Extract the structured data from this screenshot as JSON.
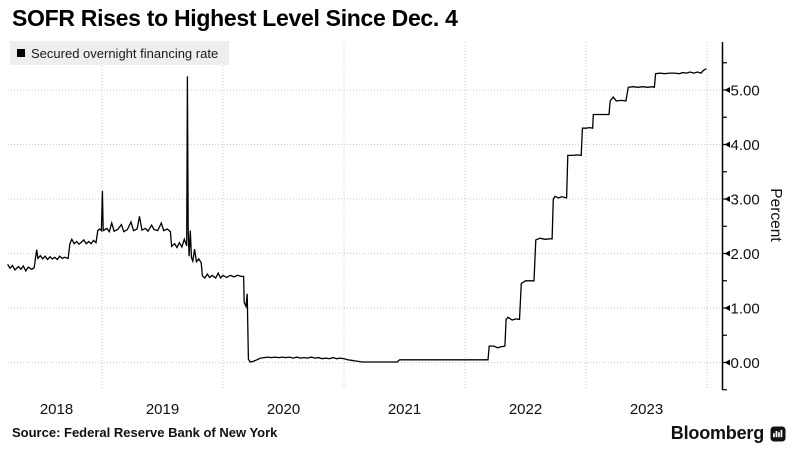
{
  "title": "SOFR Rises to Highest Level Since Dec. 4",
  "legend": {
    "label": "Secured overnight financing rate",
    "swatch_color": "#000000"
  },
  "source": "Source: Federal Reserve Bank of New York",
  "branding": {
    "name": "Bloomberg",
    "icon": "bloomberg-bars-badge"
  },
  "chart_data": {
    "type": "line",
    "title": "SOFR Rises to Highest Level Since Dec. 4",
    "ylabel": "Percent",
    "xlabel": "",
    "x_unit": "decimal_year",
    "xlim": [
      2018.22,
      2024.0
    ],
    "ylim": [
      -0.5,
      5.5
    ],
    "grid": "dotted",
    "legend_position": "top-left",
    "axis_side": "right",
    "line_color": "#000000",
    "grid_color": "#c8c8c8",
    "background": "#ffffff",
    "y_ticks_major": [
      0,
      1,
      2,
      3,
      4,
      5
    ],
    "y_tick_labels": [
      "0.00",
      "1.00",
      "2.00",
      "3.00",
      "4.00",
      "5.00"
    ],
    "y_minor_step": 0.5,
    "x_gridline_years": [
      2019,
      2020,
      2021,
      2022,
      2023,
      2024
    ],
    "x_tick_labels": [
      "2018",
      "2019",
      "2020",
      "2021",
      "2022",
      "2023"
    ],
    "series": [
      {
        "name": "Secured overnight financing rate",
        "color": "#000000",
        "points": [
          [
            2018.22,
            1.8
          ],
          [
            2018.24,
            1.73
          ],
          [
            2018.26,
            1.78
          ],
          [
            2018.28,
            1.7
          ],
          [
            2018.31,
            1.76
          ],
          [
            2018.33,
            1.71
          ],
          [
            2018.35,
            1.77
          ],
          [
            2018.37,
            1.68
          ],
          [
            2018.39,
            1.75
          ],
          [
            2018.42,
            1.71
          ],
          [
            2018.44,
            1.74
          ],
          [
            2018.45,
            1.92
          ],
          [
            2018.46,
            2.07
          ],
          [
            2018.47,
            1.91
          ],
          [
            2018.49,
            1.96
          ],
          [
            2018.51,
            1.9
          ],
          [
            2018.53,
            1.95
          ],
          [
            2018.55,
            1.89
          ],
          [
            2018.57,
            1.94
          ],
          [
            2018.59,
            1.9
          ],
          [
            2018.61,
            1.93
          ],
          [
            2018.63,
            1.89
          ],
          [
            2018.65,
            1.95
          ],
          [
            2018.67,
            1.91
          ],
          [
            2018.69,
            1.93
          ],
          [
            2018.72,
            1.91
          ],
          [
            2018.735,
            2.18
          ],
          [
            2018.75,
            2.26
          ],
          [
            2018.77,
            2.18
          ],
          [
            2018.79,
            2.22
          ],
          [
            2018.81,
            2.17
          ],
          [
            2018.83,
            2.21
          ],
          [
            2018.85,
            2.25
          ],
          [
            2018.87,
            2.18
          ],
          [
            2018.89,
            2.22
          ],
          [
            2018.91,
            2.18
          ],
          [
            2018.93,
            2.24
          ],
          [
            2018.95,
            2.2
          ],
          [
            2018.965,
            2.42
          ],
          [
            2018.98,
            2.45
          ],
          [
            2018.995,
            2.42
          ],
          [
            2019.003,
            3.15
          ],
          [
            2019.01,
            2.42
          ],
          [
            2019.04,
            2.46
          ],
          [
            2019.06,
            2.4
          ],
          [
            2019.08,
            2.56
          ],
          [
            2019.1,
            2.41
          ],
          [
            2019.13,
            2.44
          ],
          [
            2019.16,
            2.53
          ],
          [
            2019.18,
            2.4
          ],
          [
            2019.21,
            2.44
          ],
          [
            2019.24,
            2.58
          ],
          [
            2019.26,
            2.42
          ],
          [
            2019.29,
            2.45
          ],
          [
            2019.31,
            2.68
          ],
          [
            2019.33,
            2.43
          ],
          [
            2019.36,
            2.46
          ],
          [
            2019.38,
            2.41
          ],
          [
            2019.41,
            2.52
          ],
          [
            2019.43,
            2.44
          ],
          [
            2019.46,
            2.42
          ],
          [
            2019.49,
            2.56
          ],
          [
            2019.51,
            2.42
          ],
          [
            2019.54,
            2.45
          ],
          [
            2019.565,
            2.4
          ],
          [
            2019.575,
            2.13
          ],
          [
            2019.6,
            2.18
          ],
          [
            2019.62,
            2.11
          ],
          [
            2019.64,
            2.2
          ],
          [
            2019.66,
            2.12
          ],
          [
            2019.68,
            2.26
          ],
          [
            2019.7,
            2.14
          ],
          [
            2019.706,
            5.25
          ],
          [
            2019.712,
            2.4
          ],
          [
            2019.72,
            1.95
          ],
          [
            2019.73,
            2.42
          ],
          [
            2019.74,
            1.92
          ],
          [
            2019.75,
            1.86
          ],
          [
            2019.765,
            2.08
          ],
          [
            2019.78,
            1.85
          ],
          [
            2019.8,
            1.9
          ],
          [
            2019.82,
            1.83
          ],
          [
            2019.83,
            1.59
          ],
          [
            2019.85,
            1.55
          ],
          [
            2019.87,
            1.62
          ],
          [
            2019.89,
            1.56
          ],
          [
            2019.91,
            1.6
          ],
          [
            2019.94,
            1.55
          ],
          [
            2019.96,
            1.64
          ],
          [
            2019.98,
            1.55
          ],
          [
            2020.0,
            1.6
          ],
          [
            2020.03,
            1.56
          ],
          [
            2020.06,
            1.6
          ],
          [
            2020.09,
            1.57
          ],
          [
            2020.12,
            1.6
          ],
          [
            2020.15,
            1.58
          ],
          [
            2020.17,
            1.58
          ],
          [
            2020.175,
            1.1
          ],
          [
            2020.19,
            1.03
          ],
          [
            2020.2,
            1.26
          ],
          [
            2020.21,
            0.06
          ],
          [
            2020.225,
            0.01
          ],
          [
            2020.25,
            0.02
          ],
          [
            2020.28,
            0.05
          ],
          [
            2020.31,
            0.08
          ],
          [
            2020.34,
            0.09
          ],
          [
            2020.37,
            0.1
          ],
          [
            2020.4,
            0.09
          ],
          [
            2020.43,
            0.1
          ],
          [
            2020.46,
            0.09
          ],
          [
            2020.49,
            0.1
          ],
          [
            2020.52,
            0.09
          ],
          [
            2020.55,
            0.1
          ],
          [
            2020.58,
            0.08
          ],
          [
            2020.61,
            0.1
          ],
          [
            2020.64,
            0.08
          ],
          [
            2020.67,
            0.09
          ],
          [
            2020.7,
            0.08
          ],
          [
            2020.73,
            0.1
          ],
          [
            2020.76,
            0.08
          ],
          [
            2020.79,
            0.09
          ],
          [
            2020.82,
            0.07
          ],
          [
            2020.85,
            0.08
          ],
          [
            2020.88,
            0.07
          ],
          [
            2020.91,
            0.09
          ],
          [
            2020.94,
            0.07
          ],
          [
            2020.97,
            0.08
          ],
          [
            2021.0,
            0.07
          ],
          [
            2021.03,
            0.05
          ],
          [
            2021.06,
            0.04
          ],
          [
            2021.09,
            0.03
          ],
          [
            2021.12,
            0.02
          ],
          [
            2021.15,
            0.01
          ],
          [
            2021.2,
            0.01
          ],
          [
            2021.26,
            0.01
          ],
          [
            2021.32,
            0.01
          ],
          [
            2021.38,
            0.01
          ],
          [
            2021.44,
            0.01
          ],
          [
            2021.46,
            0.05
          ],
          [
            2021.55,
            0.05
          ],
          [
            2021.65,
            0.05
          ],
          [
            2021.75,
            0.05
          ],
          [
            2021.85,
            0.05
          ],
          [
            2021.95,
            0.05
          ],
          [
            2022.05,
            0.05
          ],
          [
            2022.14,
            0.05
          ],
          [
            2022.19,
            0.05
          ],
          [
            2022.2,
            0.3
          ],
          [
            2022.24,
            0.3
          ],
          [
            2022.27,
            0.27
          ],
          [
            2022.3,
            0.29
          ],
          [
            2022.33,
            0.3
          ],
          [
            2022.34,
            0.79
          ],
          [
            2022.355,
            0.83
          ],
          [
            2022.39,
            0.78
          ],
          [
            2022.42,
            0.8
          ],
          [
            2022.45,
            0.79
          ],
          [
            2022.465,
            1.45
          ],
          [
            2022.5,
            1.5
          ],
          [
            2022.54,
            1.5
          ],
          [
            2022.57,
            1.5
          ],
          [
            2022.585,
            2.25
          ],
          [
            2022.62,
            2.28
          ],
          [
            2022.66,
            2.26
          ],
          [
            2022.7,
            2.27
          ],
          [
            2022.72,
            2.27
          ],
          [
            2022.73,
            3.0
          ],
          [
            2022.745,
            3.05
          ],
          [
            2022.77,
            3.02
          ],
          [
            2022.8,
            3.04
          ],
          [
            2022.84,
            3.02
          ],
          [
            2022.85,
            3.8
          ],
          [
            2022.89,
            3.8
          ],
          [
            2022.93,
            3.81
          ],
          [
            2022.96,
            3.8
          ],
          [
            2022.97,
            4.3
          ],
          [
            2023.0,
            4.3
          ],
          [
            2023.03,
            4.31
          ],
          [
            2023.055,
            4.3
          ],
          [
            2023.06,
            4.55
          ],
          [
            2023.1,
            4.55
          ],
          [
            2023.14,
            4.55
          ],
          [
            2023.19,
            4.55
          ],
          [
            2023.2,
            4.8
          ],
          [
            2023.225,
            4.87
          ],
          [
            2023.25,
            4.8
          ],
          [
            2023.29,
            4.81
          ],
          [
            2023.33,
            4.8
          ],
          [
            2023.35,
            5.05
          ],
          [
            2023.39,
            5.06
          ],
          [
            2023.43,
            5.05
          ],
          [
            2023.47,
            5.06
          ],
          [
            2023.51,
            5.05
          ],
          [
            2023.55,
            5.06
          ],
          [
            2023.565,
            5.05
          ],
          [
            2023.575,
            5.3
          ],
          [
            2023.61,
            5.31
          ],
          [
            2023.65,
            5.3
          ],
          [
            2023.69,
            5.31
          ],
          [
            2023.73,
            5.31
          ],
          [
            2023.77,
            5.3
          ],
          [
            2023.8,
            5.32
          ],
          [
            2023.83,
            5.31
          ],
          [
            2023.86,
            5.33
          ],
          [
            2023.89,
            5.31
          ],
          [
            2023.92,
            5.33
          ],
          [
            2023.95,
            5.31
          ],
          [
            2023.97,
            5.36
          ],
          [
            2023.985,
            5.38
          ],
          [
            2023.995,
            5.39
          ]
        ]
      }
    ]
  }
}
